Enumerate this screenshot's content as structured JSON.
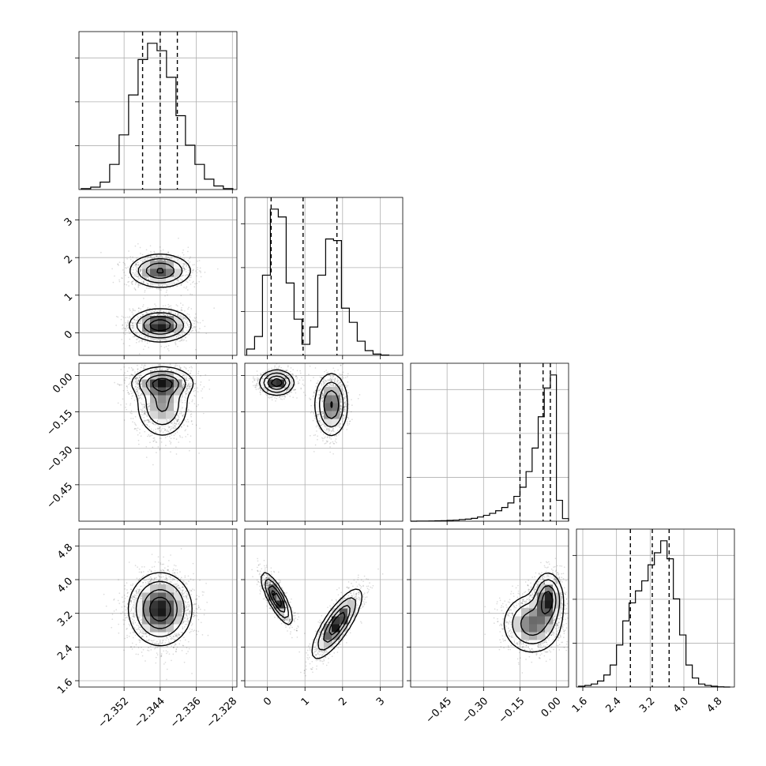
{
  "chart_data": {
    "type": "corner",
    "grid_lines": true,
    "params": [
      {
        "range": [
          -2.362,
          -2.327
        ],
        "ticks": [
          -2.352,
          -2.344,
          -2.336,
          -2.328
        ],
        "tick_labels": [
          "−2.352",
          "−2.344",
          "−2.336",
          "−2.328"
        ],
        "quantiles": [
          -2.3479,
          -2.344,
          -2.3402
        ],
        "hist_bins": [
          -2.3615,
          -2.3594,
          -2.3573,
          -2.3552,
          -2.3531,
          -2.351,
          -2.3489,
          -2.3468,
          -2.3447,
          -2.3426,
          -2.3405,
          -2.3384,
          -2.3363,
          -2.3342,
          -2.3321,
          -2.33
        ],
        "hist_counts": [
          3,
          8,
          25,
          85,
          185,
          320,
          440,
          495,
          470,
          380,
          250,
          150,
          85,
          35,
          12,
          3
        ]
      },
      {
        "range": [
          -0.6,
          3.6
        ],
        "ticks": [
          0,
          1,
          2,
          3
        ],
        "tick_labels": [
          "0",
          "1",
          "2",
          "3"
        ],
        "quantiles": [
          0.1,
          0.95,
          1.85
        ],
        "hist_bins": [
          -0.55,
          -0.34,
          -0.13,
          0.08,
          0.29,
          0.5,
          0.71,
          0.92,
          1.13,
          1.34,
          1.55,
          1.76,
          1.97,
          2.18,
          2.39,
          2.6,
          2.81,
          3.02
        ],
        "hist_counts": [
          40,
          120,
          510,
          930,
          880,
          460,
          230,
          70,
          180,
          510,
          740,
          730,
          300,
          210,
          90,
          30,
          8,
          2
        ]
      },
      {
        "range": [
          -0.6,
          0.05
        ],
        "ticks": [
          -0.45,
          -0.3,
          -0.15,
          0.0
        ],
        "tick_labels": [
          "−0.45",
          "−0.30",
          "−0.15",
          "0.00"
        ],
        "quantiles": [
          -0.15,
          -0.055,
          -0.025
        ],
        "hist_bins": [
          -0.6,
          -0.575,
          -0.55,
          -0.525,
          -0.5,
          -0.475,
          -0.45,
          -0.425,
          -0.4,
          -0.375,
          -0.35,
          -0.325,
          -0.3,
          -0.275,
          -0.25,
          -0.225,
          -0.2,
          -0.175,
          -0.15,
          -0.125,
          -0.1,
          -0.075,
          -0.05,
          -0.025,
          0.0,
          0.025
        ],
        "hist_counts": [
          0,
          1,
          1,
          2,
          3,
          4,
          6,
          8,
          12,
          16,
          22,
          32,
          45,
          60,
          80,
          105,
          140,
          190,
          260,
          380,
          560,
          800,
          1020,
          1120,
          160,
          20
        ]
      },
      {
        "range": [
          1.45,
          5.2
        ],
        "ticks": [
          1.6,
          2.4,
          3.2,
          4.0,
          4.8
        ],
        "tick_labels": [
          "1.6",
          "2.4",
          "3.2",
          "4.0",
          "4.8"
        ],
        "quantiles": [
          2.73,
          3.25,
          3.65
        ],
        "hist_bins": [
          1.5,
          1.65,
          1.8,
          1.95,
          2.1,
          2.25,
          2.4,
          2.55,
          2.7,
          2.85,
          3.0,
          3.15,
          3.3,
          3.45,
          3.6,
          3.75,
          3.9,
          4.05,
          4.2,
          4.35,
          4.5,
          4.65,
          4.8,
          4.95
        ],
        "hist_counts": [
          4,
          8,
          15,
          30,
          60,
          110,
          210,
          330,
          420,
          480,
          530,
          610,
          670,
          730,
          640,
          440,
          260,
          110,
          45,
          15,
          8,
          4,
          1,
          0
        ]
      }
    ],
    "pairs": [
      {
        "row": 1,
        "col": 0,
        "modes": [
          {
            "center": [
              -2.344,
              1.65
            ],
            "sigma": [
              0.0034,
              0.22
            ],
            "weight": 0.45
          },
          {
            "center": [
              -2.344,
              0.2
            ],
            "sigma": [
              0.0033,
              0.21
            ],
            "weight": 0.55
          }
        ]
      },
      {
        "row": 2,
        "col": 0,
        "modes": [
          {
            "center": [
              -2.3435,
              -0.03
            ],
            "sigma": [
              0.0034,
              0.03
            ],
            "weight": 0.55
          },
          {
            "center": [
              -2.3435,
              -0.12
            ],
            "sigma": [
              0.003,
              0.07
            ],
            "weight": 0.45
          }
        ]
      },
      {
        "row": 2,
        "col": 1,
        "modes": [
          {
            "center": [
              0.25,
              -0.03
            ],
            "sigma": [
              0.22,
              0.025
            ],
            "weight": 0.55
          },
          {
            "center": [
              1.7,
              -0.12
            ],
            "sigma": [
              0.22,
              0.065
            ],
            "weight": 0.45
          }
        ]
      },
      {
        "row": 3,
        "col": 0,
        "modes": [
          {
            "center": [
              -2.344,
              3.3
            ],
            "sigma": [
              0.0034,
              0.42
            ],
            "weight": 1.0
          }
        ]
      },
      {
        "row": 3,
        "col": 1,
        "modes": [
          {
            "center": [
              0.25,
              3.55
            ],
            "sigma": [
              0.2,
              0.3
            ],
            "rho": -0.8,
            "weight": 0.5
          },
          {
            "center": [
              1.85,
              2.95
            ],
            "sigma": [
              0.32,
              0.4
            ],
            "rho": 0.8,
            "weight": 0.5
          }
        ]
      },
      {
        "row": 3,
        "col": 2,
        "modes": [
          {
            "center": [
              -0.035,
              3.55
            ],
            "sigma": [
              0.03,
              0.3
            ],
            "weight": 0.55
          },
          {
            "center": [
              -0.1,
              2.95
            ],
            "sigma": [
              0.06,
              0.35
            ],
            "weight": 0.45
          }
        ]
      }
    ]
  }
}
